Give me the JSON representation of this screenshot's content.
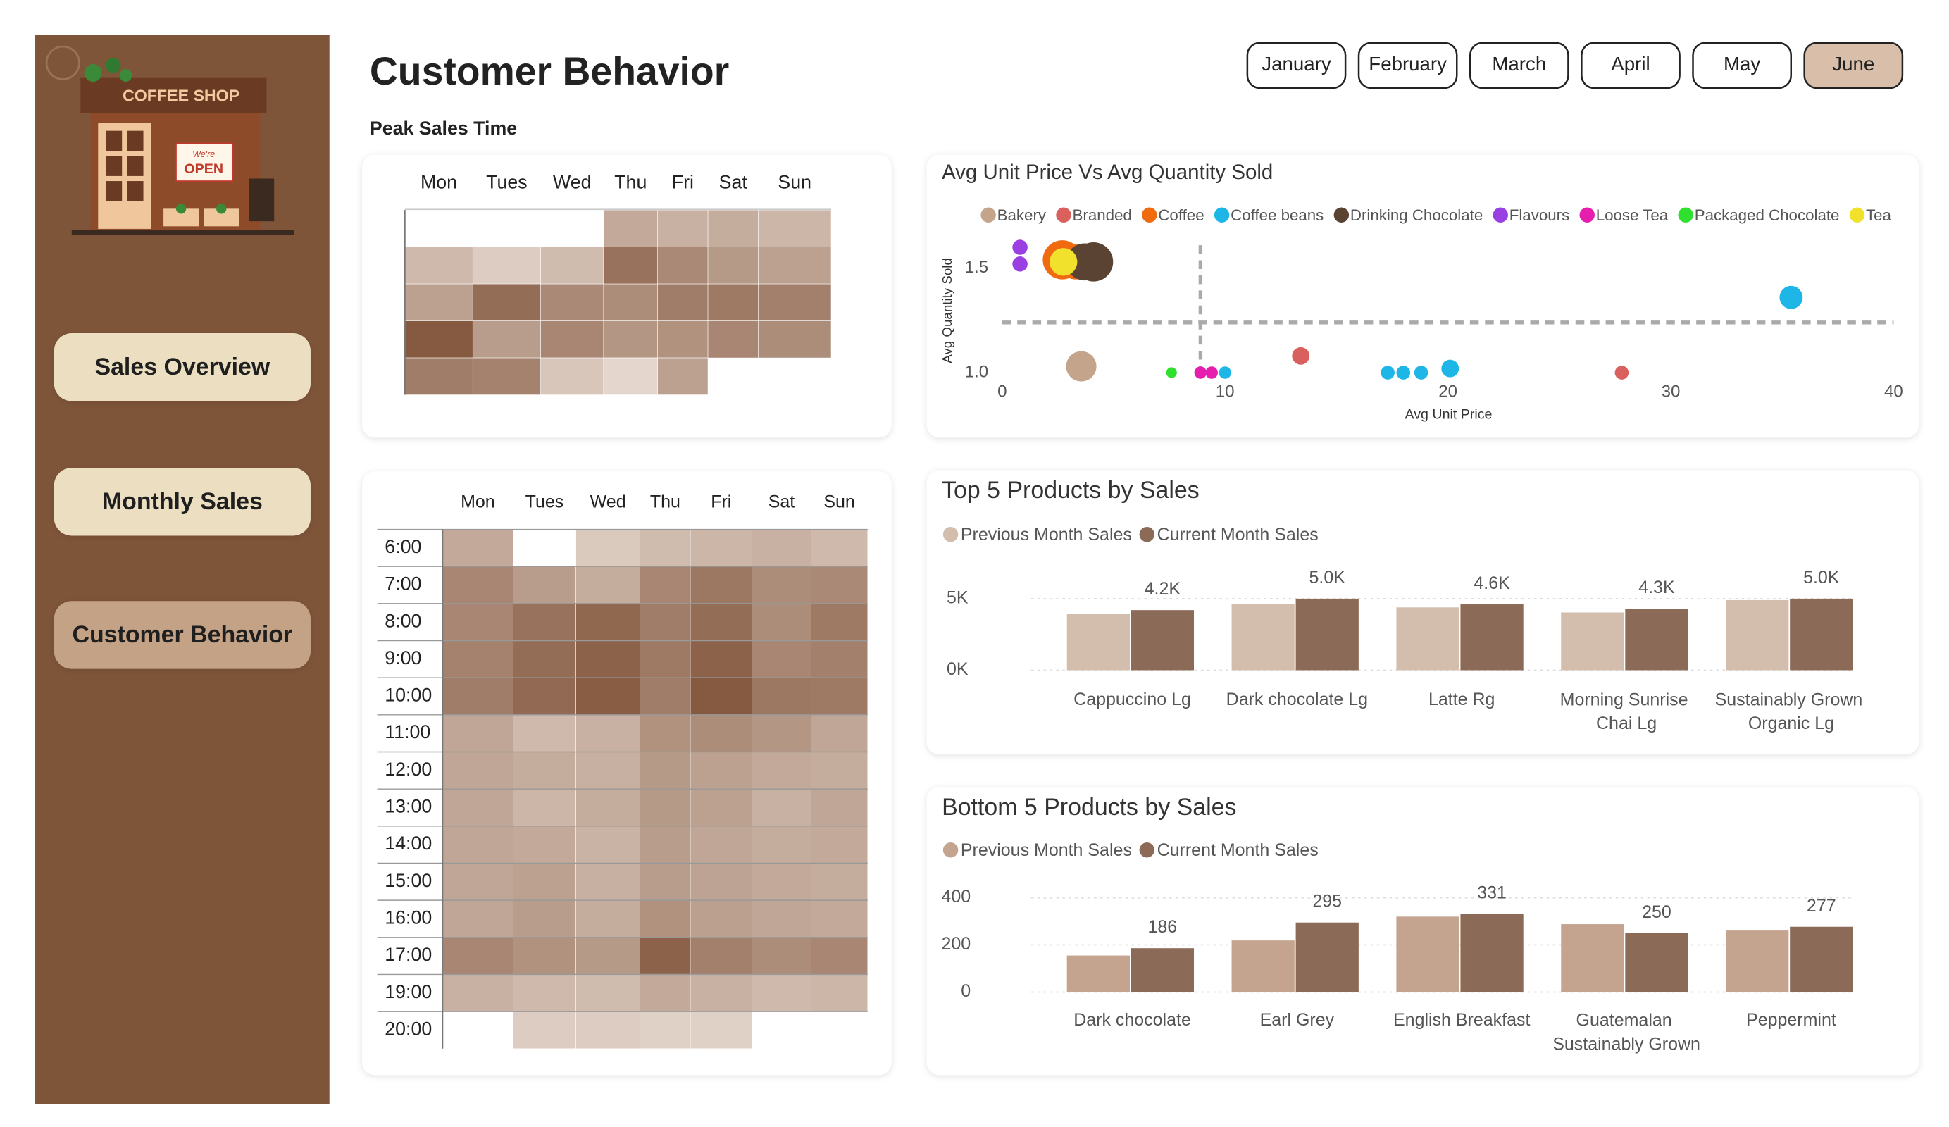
{
  "title": "Customer Behavior",
  "logo": {
    "sign": "COFFEE SHOP",
    "door_sign_top": "We're",
    "door_sign_bottom": "OPEN"
  },
  "nav": [
    "Sales Overview",
    "Monthly Sales",
    "Customer Behavior"
  ],
  "active_nav": 2,
  "months": [
    "January",
    "February",
    "March",
    "April",
    "May",
    "June"
  ],
  "active_month": 5,
  "section_label": "Peak Sales Time",
  "chart_data": [
    {
      "type": "heatmap",
      "columns": [
        "Mon",
        "Tues",
        "Wed",
        "Thu",
        "Fri",
        "Sat",
        "Sun"
      ],
      "vlim": [
        0,
        100
      ],
      "colors": [
        "#f2e9e1",
        "#7a4a2f"
      ],
      "values": [
        [
          null,
          null,
          null,
          40,
          35,
          38,
          32
        ],
        [
          30,
          18,
          28,
          75,
          60,
          50,
          45
        ],
        [
          45,
          78,
          60,
          58,
          68,
          70,
          66
        ],
        [
          90,
          48,
          62,
          52,
          55,
          62,
          58
        ],
        [
          68,
          65,
          22,
          12,
          45,
          null,
          null
        ]
      ]
    },
    {
      "type": "heatmap",
      "columns": [
        "Mon",
        "Tues",
        "Wed",
        "Thu",
        "Fri",
        "Sat",
        "Sun"
      ],
      "rows": [
        "6:00",
        "7:00",
        "8:00",
        "9:00",
        "10:00",
        "11:00",
        "12:00",
        "13:00",
        "14:00",
        "15:00",
        "16:00",
        "17:00",
        "19:00",
        "20:00"
      ],
      "vlim": [
        0,
        100
      ],
      "colors": [
        "#f2e9e1",
        "#7a4a2f"
      ],
      "values": [
        [
          40,
          null,
          20,
          28,
          32,
          35,
          30
        ],
        [
          62,
          48,
          38,
          62,
          72,
          58,
          60
        ],
        [
          62,
          75,
          82,
          68,
          78,
          58,
          70
        ],
        [
          65,
          78,
          85,
          70,
          85,
          62,
          66
        ],
        [
          68,
          80,
          88,
          68,
          90,
          72,
          70
        ],
        [
          42,
          30,
          35,
          55,
          58,
          52,
          42
        ],
        [
          42,
          38,
          36,
          50,
          45,
          40,
          38
        ],
        [
          42,
          32,
          38,
          50,
          45,
          35,
          42
        ],
        [
          42,
          40,
          34,
          48,
          42,
          38,
          40
        ],
        [
          42,
          45,
          36,
          48,
          44,
          40,
          38
        ],
        [
          42,
          48,
          38,
          55,
          46,
          42,
          40
        ],
        [
          62,
          55,
          50,
          85,
          66,
          58,
          62
        ],
        [
          35,
          30,
          28,
          40,
          35,
          30,
          32
        ],
        [
          null,
          18,
          18,
          15,
          15,
          null,
          null
        ]
      ]
    },
    {
      "type": "scatter",
      "title": "Avg Unit Price Vs Avg Quantity Sold",
      "xlabel": "Avg Unit Price",
      "ylabel": "Avg Quantity Sold",
      "xlim": [
        0,
        40
      ],
      "xticks": [
        0,
        10,
        20,
        30,
        40
      ],
      "ylim": [
        0.96,
        1.64
      ],
      "yticks": [
        {
          "value": 1,
          "label": "1.0"
        },
        {
          "value": 1.5,
          "label": "1.5"
        }
      ],
      "reference_lines": {
        "x": 8.9,
        "y": 1.24
      },
      "series": [
        {
          "name": "Bakery",
          "color": "#c4a48a",
          "x": [
            3.55
          ],
          "y": [
            1.03
          ],
          "sizes": [
            120
          ]
        },
        {
          "name": "Branded",
          "color": "#d9605c",
          "x": [
            13.4,
            27.8
          ],
          "y": [
            1.08,
            1.0
          ],
          "sizes": [
            40,
            25
          ]
        },
        {
          "name": "Coffee",
          "color": "#f06a0f",
          "x": [
            2.7,
            3.3
          ],
          "y": [
            1.54,
            1.53
          ],
          "sizes": [
            200,
            160
          ]
        },
        {
          "name": "Coffee beans",
          "color": "#1eb6e6",
          "x": [
            35.4,
            20.1,
            17.3,
            18,
            18.8,
            10
          ],
          "y": [
            1.36,
            1.02,
            1.0,
            1.0,
            1.0,
            1.0
          ],
          "sizes": [
            70,
            40,
            25,
            25,
            25,
            20
          ]
        },
        {
          "name": "Drinking Chocolate",
          "color": "#5b4333",
          "x": [
            4.1,
            3.7
          ],
          "y": [
            1.53,
            1.53
          ],
          "sizes": [
            200,
            180
          ]
        },
        {
          "name": "Flavours",
          "color": "#9a3fe2",
          "x": [
            0.8,
            0.8
          ],
          "y": [
            1.52,
            1.6
          ],
          "sizes": [
            30,
            30
          ]
        },
        {
          "name": "Loose Tea",
          "color": "#e61eae",
          "x": [
            8.9,
            9.4
          ],
          "y": [
            1.0,
            1.0
          ],
          "sizes": [
            20,
            20
          ]
        },
        {
          "name": "Packaged Chocolate",
          "color": "#2fe02f",
          "x": [
            7.6
          ],
          "y": [
            1.0
          ],
          "sizes": [
            15
          ]
        },
        {
          "name": "Tea",
          "color": "#f2e12c",
          "x": [
            2.75
          ],
          "y": [
            1.53
          ],
          "sizes": [
            100
          ]
        }
      ]
    },
    {
      "type": "bar",
      "title": "Top 5 Products by Sales",
      "categories": [
        "Cappuccino Lg",
        "Dark chocolate Lg",
        "Latte Rg",
        "Morning Sunrise Chai Lg",
        "Sustainably Grown Organic Lg"
      ],
      "ylim": [
        0,
        5800
      ],
      "yticks": [
        {
          "value": 0,
          "label": "0K"
        },
        {
          "value": 5000,
          "label": "5K"
        }
      ],
      "grid": true,
      "series": [
        {
          "name": "Previous Month Sales",
          "color": "#d3bdac",
          "values": [
            3950,
            4650,
            4390,
            4035,
            4900
          ]
        },
        {
          "name": "Current Month Sales",
          "color": "#8b6b57",
          "values": [
            4200,
            5000,
            4600,
            4300,
            5000
          ],
          "value_labels": [
            "4.2K",
            "5.0K",
            "4.6K",
            "4.3K",
            "5.0K"
          ]
        }
      ]
    },
    {
      "type": "bar",
      "title": "Bottom 5 Products by Sales",
      "categories": [
        "Dark chocolate",
        "Earl Grey",
        "English Breakfast",
        "Guatemalan Sustainably Grown",
        "Peppermint"
      ],
      "ylim": [
        0,
        440
      ],
      "yticks": [
        0,
        200,
        400
      ],
      "grid": true,
      "series": [
        {
          "name": "Previous Month Sales",
          "color": "#c4a48e",
          "values": [
            155,
            219,
            320,
            288,
            261
          ]
        },
        {
          "name": "Current Month Sales",
          "color": "#8b6b57",
          "values": [
            186,
            295,
            331,
            250,
            277
          ]
        }
      ]
    }
  ]
}
